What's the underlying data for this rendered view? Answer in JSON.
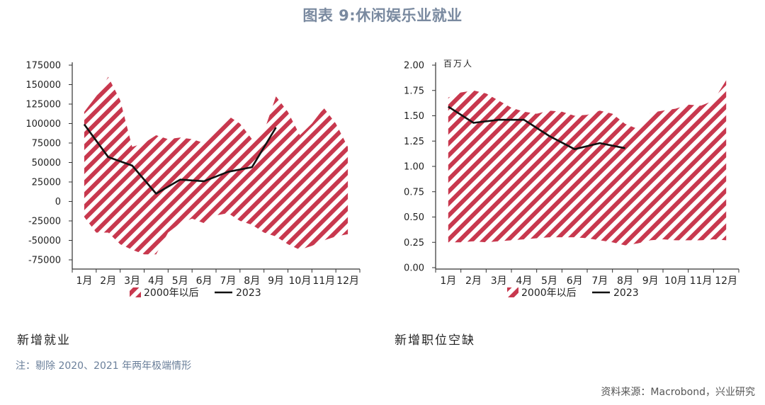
{
  "title": "图表 9:休闲娱乐业就业",
  "colors": {
    "band": "#c8384e",
    "line": "#111111",
    "title": "#7a8aa0",
    "note": "#6a7f9a"
  },
  "months": [
    "1月",
    "2月",
    "3月",
    "4月",
    "5月",
    "6月",
    "7月",
    "8月",
    "9月",
    "10月",
    "11月",
    "12月"
  ],
  "legend": {
    "band_label": "2000年以后",
    "line_label": "2023"
  },
  "chart_data": [
    {
      "type": "area",
      "caption": "新增就业",
      "unit_label": "",
      "ylim": [
        -75000,
        175000
      ],
      "yticks": [
        175000,
        150000,
        125000,
        100000,
        75000,
        50000,
        25000,
        0,
        -25000,
        -50000,
        -75000
      ],
      "ytick_labels": [
        "175000",
        "150000",
        "125000",
        "100000",
        "75000",
        "50000",
        "25000",
        "0",
        "-25000",
        "-50000",
        "-75000"
      ],
      "band_x": [
        1,
        1.5,
        2,
        2.5,
        3,
        3.5,
        4,
        4.5,
        5,
        5.5,
        6,
        6.5,
        7,
        7.5,
        8,
        8.5,
        9,
        9.5,
        10,
        10.5,
        11,
        11.5,
        12
      ],
      "band_upper": [
        115000,
        135000,
        160000,
        130000,
        70000,
        75000,
        85000,
        80000,
        82000,
        80000,
        75000,
        90000,
        110000,
        100000,
        80000,
        90000,
        135000,
        115000,
        85000,
        100000,
        120000,
        100000,
        70000
      ],
      "band_lower": [
        -20000,
        -40000,
        -40000,
        -55000,
        -62000,
        -68000,
        -68000,
        -40000,
        -28000,
        -22000,
        -28000,
        -18000,
        -15000,
        -25000,
        -30000,
        -40000,
        -45000,
        -55000,
        -62000,
        -57000,
        -50000,
        -45000,
        -42000
      ],
      "series": [
        {
          "name": "2023",
          "x": [
            1,
            2,
            3,
            4,
            5,
            6,
            7,
            8,
            9
          ],
          "values": [
            99000,
            57000,
            46000,
            10000,
            28000,
            26000,
            38000,
            44000,
            95000
          ]
        }
      ]
    },
    {
      "type": "area",
      "caption": "新增职位空缺",
      "unit_label": "百万人",
      "ylim": [
        0,
        2
      ],
      "yticks": [
        2,
        1.75,
        1.5,
        1.25,
        1,
        0.75,
        0.5,
        0.25,
        0
      ],
      "ytick_labels": [
        "2.00",
        "1.75",
        "1.50",
        "1.25",
        "1.00",
        "0.75",
        "0.50",
        "0.25",
        "0.00"
      ],
      "band_x": [
        1,
        1.5,
        2,
        2.5,
        3,
        3.5,
        4,
        4.5,
        5,
        5.5,
        6,
        6.5,
        7,
        7.5,
        8,
        8.5,
        9,
        9.5,
        10,
        10.5,
        11,
        11.5,
        12
      ],
      "band_upper": [
        1.68,
        1.73,
        1.75,
        1.72,
        1.65,
        1.58,
        1.54,
        1.52,
        1.55,
        1.54,
        1.5,
        1.51,
        1.55,
        1.52,
        1.42,
        1.37,
        1.53,
        1.55,
        1.57,
        1.61,
        1.6,
        1.65,
        1.85
      ],
      "band_lower": [
        0.25,
        0.25,
        0.26,
        0.25,
        0.26,
        0.27,
        0.28,
        0.29,
        0.3,
        0.3,
        0.3,
        0.29,
        0.27,
        0.25,
        0.22,
        0.24,
        0.27,
        0.28,
        0.27,
        0.27,
        0.27,
        0.28,
        0.27
      ],
      "series": [
        {
          "name": "2023",
          "x": [
            1,
            2,
            3,
            4,
            5,
            6,
            7,
            8
          ],
          "values": [
            1.59,
            1.43,
            1.46,
            1.46,
            1.3,
            1.17,
            1.23,
            1.18
          ]
        }
      ]
    }
  ],
  "footnote": "注：剔除 2020、2021 年两年极端情形",
  "source": "资料来源：Macrobond，兴业研究"
}
